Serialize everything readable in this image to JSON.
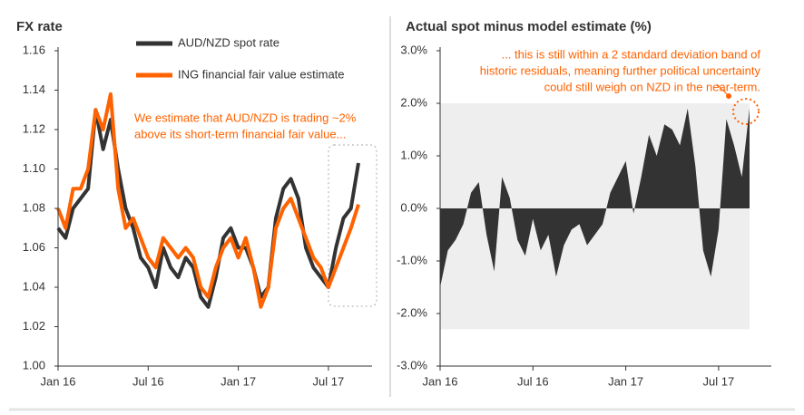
{
  "chart_data": [
    {
      "type": "line",
      "title": "FX rate",
      "categories": [
        "Jan 16",
        null,
        null,
        null,
        null,
        null,
        null,
        null,
        null,
        null,
        null,
        null,
        "Jul 16",
        null,
        null,
        null,
        null,
        null,
        null,
        null,
        null,
        null,
        null,
        null,
        "Jan 17",
        null,
        null,
        null,
        null,
        null,
        null,
        null,
        null,
        null,
        null,
        null,
        "Jul 17",
        null,
        null,
        null,
        null
      ],
      "series": [
        {
          "name": "AUD/NZD spot rate",
          "color": "#333333",
          "values": [
            1.07,
            1.065,
            1.08,
            1.085,
            1.09,
            1.13,
            1.11,
            1.125,
            1.1,
            1.08,
            1.07,
            1.055,
            1.05,
            1.04,
            1.06,
            1.05,
            1.045,
            1.055,
            1.05,
            1.035,
            1.03,
            1.045,
            1.065,
            1.07,
            1.06,
            1.06,
            1.05,
            1.035,
            1.04,
            1.075,
            1.09,
            1.095,
            1.085,
            1.06,
            1.05,
            1.045,
            1.04,
            1.06,
            1.075,
            1.08,
            1.103
          ]
        },
        {
          "name": "ING financial fair value estimate",
          "color": "#ff6200",
          "values": [
            1.08,
            1.07,
            1.09,
            1.09,
            1.1,
            1.13,
            1.12,
            1.138,
            1.09,
            1.07,
            1.075,
            1.065,
            1.055,
            1.05,
            1.065,
            1.06,
            1.055,
            1.06,
            1.055,
            1.04,
            1.035,
            1.05,
            1.06,
            1.065,
            1.055,
            1.065,
            1.05,
            1.03,
            1.04,
            1.07,
            1.08,
            1.085,
            1.075,
            1.065,
            1.055,
            1.05,
            1.04,
            1.05,
            1.06,
            1.07,
            1.082
          ]
        }
      ],
      "ylim": [
        1.0,
        1.16
      ],
      "yticks": [
        {
          "value": 1,
          "label": "1.00"
        },
        1.02,
        1.04,
        1.06,
        1.08,
        {
          "value": 1.1,
          "label": "1.10"
        },
        1.12,
        1.14,
        1.16
      ],
      "annotation": [
        "We estimate that AUD/NZD is trading ~2%",
        "above its short-term financial fair value..."
      ]
    },
    {
      "type": "area",
      "title": "Actual spot minus model estimate (%)",
      "categories": [
        "Jan 16",
        null,
        null,
        null,
        null,
        null,
        null,
        null,
        null,
        null,
        null,
        null,
        "Jul 16",
        null,
        null,
        null,
        null,
        null,
        null,
        null,
        null,
        null,
        null,
        null,
        "Jan 17",
        null,
        null,
        null,
        null,
        null,
        null,
        null,
        null,
        null,
        null,
        null,
        "Jul 17",
        null,
        null,
        null,
        null
      ],
      "values": [
        -1.5,
        -0.8,
        -0.6,
        -0.3,
        0.3,
        0.5,
        -0.5,
        -1.2,
        0.6,
        0.2,
        -0.6,
        -0.9,
        -0.2,
        -0.8,
        -0.5,
        -1.3,
        -0.7,
        -0.4,
        -0.3,
        -0.7,
        -0.5,
        -0.3,
        0.3,
        0.6,
        0.9,
        -0.1,
        0.6,
        1.4,
        1.0,
        1.6,
        1.5,
        1.2,
        1.9,
        0.8,
        -0.8,
        -1.3,
        -0.4,
        1.7,
        1.2,
        0.6,
        1.9
      ],
      "color": "#333333",
      "band": [
        -2.3,
        2.0
      ],
      "ylim": [
        -3,
        3
      ],
      "yticks": [
        {
          "value": -3,
          "label": "-3.0%"
        },
        {
          "value": -2,
          "label": "-2.0%"
        },
        {
          "value": -1,
          "label": "-1.0%"
        },
        {
          "value": 0,
          "label": "0.0%"
        },
        {
          "value": 1,
          "label": "1.0%"
        },
        {
          "value": 2,
          "label": "2.0%"
        },
        {
          "value": 3,
          "label": "3.0%"
        }
      ],
      "annotation": [
        "... this is still within a 2 standard deviation band of",
        "historic residuals, meaning further political uncertainty",
        "could still weigh on NZD in the near-term."
      ]
    }
  ]
}
